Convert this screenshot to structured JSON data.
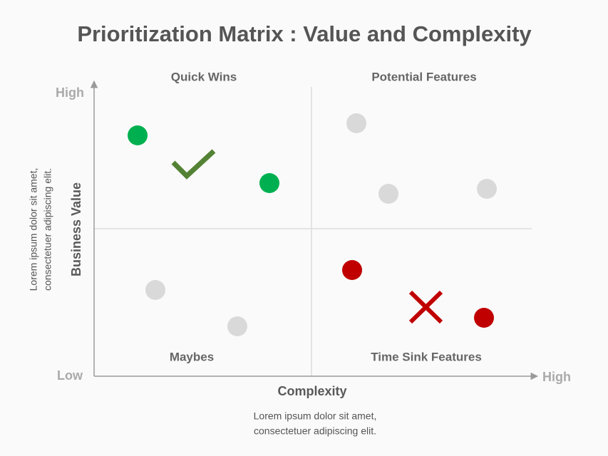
{
  "title": "Prioritization Matrix : Value and Complexity",
  "quadrants": {
    "top_left": "Quick Wins",
    "top_right": "Potential Features",
    "bottom_left": "Maybes",
    "bottom_right": "Time Sink Features"
  },
  "y_axis": {
    "label": "Business Value",
    "high": "High",
    "low": "Low",
    "note": [
      "Lorem ipsum dolor sit amet,",
      "consectetuer adipiscing elit."
    ]
  },
  "x_axis": {
    "label": "Complexity",
    "high": "High",
    "note": [
      "Lorem ipsum dolor sit amet,",
      "consectetuer adipiscing elit."
    ]
  }
}
